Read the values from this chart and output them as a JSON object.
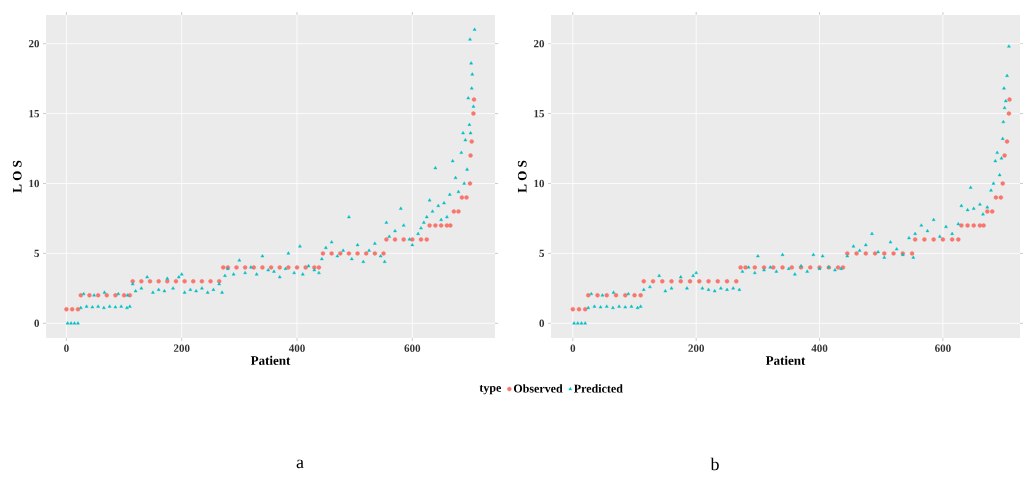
{
  "chart_data": [
    {
      "type": "scatter",
      "xlabel": "Patient",
      "ylabel": "L O S",
      "legend_title": "type",
      "legend": "bottom",
      "grid": true,
      "xlim": [
        -35.4,
        743.4
      ],
      "ylim": [
        -1.05,
        22.05
      ],
      "xticks": [
        0,
        200,
        400,
        600
      ],
      "yticks": [
        0,
        5,
        10,
        15,
        20
      ],
      "annotations": [
        "a"
      ],
      "series": [
        {
          "name": "Observed",
          "color": "#f8766d",
          "marker": "circle",
          "x": [
            0,
            10,
            20,
            25,
            40,
            55,
            70,
            85,
            100,
            110,
            115,
            130,
            145,
            160,
            175,
            190,
            205,
            220,
            235,
            250,
            265,
            272,
            280,
            295,
            310,
            325,
            340,
            355,
            370,
            385,
            400,
            415,
            430,
            438,
            445,
            460,
            475,
            490,
            505,
            520,
            535,
            550,
            555,
            570,
            585,
            600,
            615,
            625,
            630,
            640,
            650,
            660,
            666,
            672,
            680,
            686,
            694,
            700,
            701,
            703,
            706,
            707
          ],
          "values": [
            1,
            1,
            1,
            2,
            2,
            2,
            2,
            2,
            2,
            2,
            3,
            3,
            3,
            3,
            3,
            3,
            3,
            3,
            3,
            3,
            3,
            4,
            4,
            4,
            4,
            4,
            4,
            4,
            4,
            4,
            4,
            4,
            4,
            4,
            5,
            5,
            5,
            5,
            5,
            5,
            5,
            5,
            6,
            6,
            6,
            6,
            6,
            6,
            7,
            7,
            7,
            7,
            7,
            8,
            8,
            9,
            9,
            10,
            12,
            13,
            15,
            16
          ]
        },
        {
          "name": "Predicted",
          "color": "#00bfc4",
          "marker": "triangle",
          "x": [
            2,
            8,
            14,
            20,
            25,
            30,
            35,
            45,
            48,
            55,
            65,
            66,
            75,
            85,
            90,
            95,
            105,
            106,
            110,
            115,
            120,
            130,
            140,
            150,
            160,
            170,
            175,
            185,
            195,
            200,
            205,
            215,
            225,
            235,
            245,
            255,
            265,
            270,
            275,
            280,
            290,
            300,
            310,
            320,
            330,
            340,
            350,
            360,
            370,
            380,
            385,
            395,
            405,
            410,
            420,
            430,
            438,
            443,
            450,
            460,
            470,
            480,
            490,
            495,
            505,
            515,
            525,
            535,
            545,
            552,
            555,
            560,
            570,
            580,
            585,
            595,
            600,
            610,
            615,
            620,
            625,
            630,
            635,
            640,
            645,
            650,
            655,
            660,
            665,
            670,
            675,
            680,
            685,
            688,
            690,
            692,
            695,
            697,
            699,
            700,
            701,
            702,
            703,
            704,
            706,
            708
          ],
          "values": [
            0,
            0,
            0,
            0,
            1.1,
            2.1,
            1.2,
            1.15,
            2.0,
            1.2,
            1.1,
            2.2,
            1.2,
            1.15,
            2.1,
            1.2,
            1.1,
            2.0,
            1.2,
            2.8,
            2.3,
            2.5,
            3.3,
            2.2,
            2.4,
            2.3,
            3.2,
            2.5,
            3.3,
            3.5,
            2.2,
            2.4,
            2.3,
            2.5,
            2.2,
            2.4,
            2.8,
            2.2,
            3.4,
            3.9,
            3.5,
            4.5,
            3.6,
            4.0,
            3.5,
            4.8,
            3.8,
            3.7,
            3.3,
            3.9,
            5.0,
            3.6,
            5.5,
            3.5,
            4.1,
            3.8,
            3.6,
            4.6,
            5.4,
            5.8,
            4.8,
            5.2,
            7.6,
            4.6,
            5.6,
            4.4,
            5.2,
            5.7,
            4.8,
            4.4,
            7.2,
            6.2,
            6.6,
            8.2,
            7.0,
            6.0,
            5.6,
            6.4,
            6.8,
            7.2,
            7.6,
            8.8,
            8.0,
            11.1,
            8.4,
            7.4,
            8.6,
            7.6,
            9.2,
            11.6,
            10.4,
            9.4,
            12.2,
            13.6,
            10.0,
            13.1,
            11.0,
            16.1,
            14.2,
            20.3,
            13.6,
            18.6,
            16.8,
            17.8,
            15.5,
            21.0
          ]
        }
      ]
    },
    {
      "type": "scatter",
      "xlabel": "Patient",
      "ylabel": "L O S",
      "grid": true,
      "xlim": [
        -35.4,
        725
      ],
      "ylim": [
        -1.05,
        22.05
      ],
      "xticks": [
        0,
        200,
        400,
        600
      ],
      "yticks": [
        0,
        5,
        10,
        15,
        20
      ],
      "annotations": [
        "b"
      ],
      "series": [
        {
          "color": "#f8766d",
          "marker": "circle",
          "x": [
            0,
            10,
            20,
            25,
            40,
            55,
            70,
            85,
            100,
            110,
            115,
            130,
            145,
            160,
            175,
            190,
            205,
            220,
            235,
            250,
            265,
            272,
            280,
            295,
            310,
            325,
            340,
            355,
            370,
            385,
            400,
            415,
            430,
            438,
            445,
            460,
            475,
            490,
            505,
            520,
            535,
            550,
            555,
            570,
            585,
            600,
            615,
            625,
            630,
            640,
            650,
            660,
            666,
            672,
            680,
            686,
            694,
            697,
            700,
            704,
            707,
            708
          ],
          "values": [
            1,
            1,
            1,
            2,
            2,
            2,
            2,
            2,
            2,
            2,
            3,
            3,
            3,
            3,
            3,
            3,
            3,
            3,
            3,
            3,
            3,
            4,
            4,
            4,
            4,
            4,
            4,
            4,
            4,
            4,
            4,
            4,
            4,
            4,
            5,
            5,
            5,
            5,
            5,
            5,
            5,
            5,
            6,
            6,
            6,
            6,
            6,
            6,
            7,
            7,
            7,
            7,
            7,
            8,
            8,
            9,
            9,
            10,
            12,
            13,
            15,
            16
          ]
        },
        {
          "color": "#00bfc4",
          "marker": "triangle",
          "x": [
            2,
            8,
            14,
            20,
            25,
            30,
            35,
            45,
            48,
            55,
            65,
            66,
            75,
            85,
            90,
            95,
            105,
            110,
            115,
            125,
            140,
            150,
            160,
            175,
            185,
            195,
            200,
            210,
            220,
            230,
            240,
            250,
            260,
            270,
            275,
            285,
            295,
            300,
            310,
            320,
            330,
            340,
            350,
            360,
            370,
            380,
            390,
            400,
            405,
            415,
            425,
            435,
            445,
            455,
            465,
            475,
            485,
            495,
            505,
            515,
            525,
            535,
            545,
            552,
            555,
            565,
            575,
            585,
            595,
            605,
            615,
            625,
            630,
            640,
            645,
            650,
            660,
            665,
            672,
            678,
            682,
            685,
            688,
            692,
            695,
            697,
            698,
            699,
            700,
            702,
            704,
            707
          ],
          "values": [
            0,
            0,
            0,
            0,
            1.1,
            2.1,
            1.2,
            1.15,
            2.0,
            1.2,
            1.1,
            2.2,
            1.2,
            1.15,
            2.1,
            1.2,
            1.1,
            1.2,
            2.4,
            2.6,
            3.4,
            2.3,
            2.5,
            3.3,
            2.5,
            3.4,
            3.6,
            2.5,
            2.4,
            2.3,
            2.5,
            2.4,
            2.5,
            2.4,
            3.7,
            4.0,
            3.6,
            4.8,
            3.8,
            4.0,
            3.7,
            4.9,
            3.9,
            3.5,
            4.1,
            3.7,
            4.9,
            3.9,
            4.8,
            4.0,
            3.8,
            3.9,
            4.8,
            5.5,
            5.2,
            5.6,
            6.4,
            5.1,
            4.7,
            5.8,
            5.3,
            4.9,
            6.1,
            4.7,
            6.4,
            7.0,
            6.6,
            7.4,
            6.2,
            6.9,
            6.4,
            7.1,
            8.4,
            8.1,
            9.7,
            8.2,
            8.5,
            7.8,
            8.3,
            9.5,
            10.0,
            11.6,
            12.2,
            10.6,
            11.8,
            13.2,
            14.4,
            16.8,
            15.4,
            15.9,
            17.7,
            19.8
          ]
        }
      ]
    }
  ]
}
